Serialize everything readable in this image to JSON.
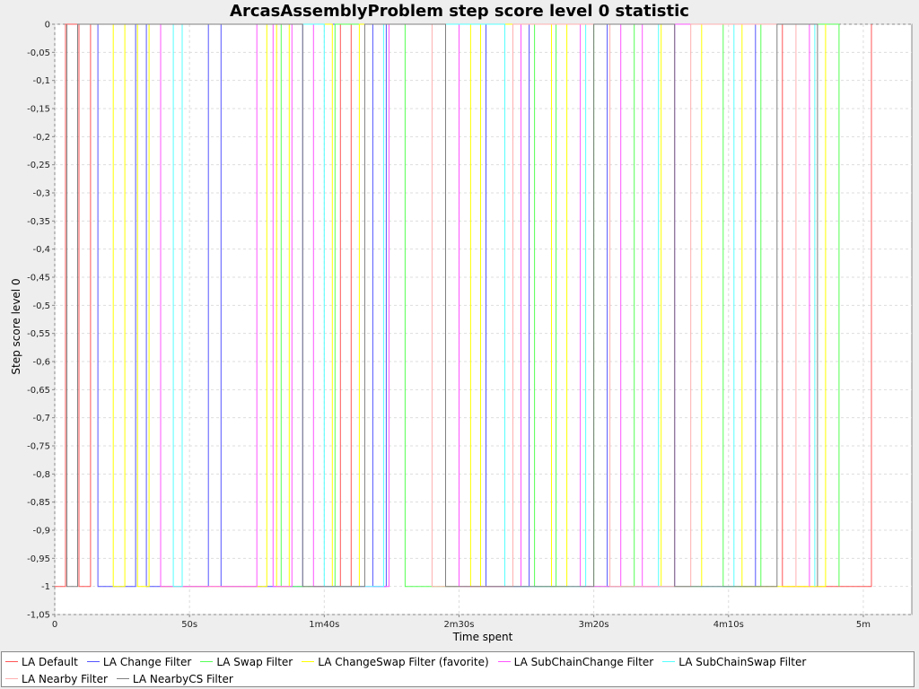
{
  "chart_data": {
    "type": "line",
    "title": "ArcasAssemblyProblem step score level 0 statistic",
    "xlabel": "Time spent",
    "ylabel": "Step score level 0",
    "xlim": [
      0,
      318
    ],
    "ylim": [
      -1.05,
      0
    ],
    "x_ticks": [
      {
        "value": 0,
        "label": "0"
      },
      {
        "value": 50,
        "label": "50s"
      },
      {
        "value": 100,
        "label": "1m40s"
      },
      {
        "value": 150,
        "label": "2m30s"
      },
      {
        "value": 200,
        "label": "3m20s"
      },
      {
        "value": 250,
        "label": "4m10s"
      },
      {
        "value": 300,
        "label": "5m"
      }
    ],
    "y_ticks": [
      {
        "value": 0,
        "label": "0"
      },
      {
        "value": -0.05,
        "label": "-0,05"
      },
      {
        "value": -0.1,
        "label": "-0,1"
      },
      {
        "value": -0.15,
        "label": "-0,15"
      },
      {
        "value": -0.2,
        "label": "-0,2"
      },
      {
        "value": -0.25,
        "label": "-0,25"
      },
      {
        "value": -0.3,
        "label": "-0,3"
      },
      {
        "value": -0.35,
        "label": "-0,35"
      },
      {
        "value": -0.4,
        "label": "-0,4"
      },
      {
        "value": -0.45,
        "label": "-0,45"
      },
      {
        "value": -0.5,
        "label": "-0,5"
      },
      {
        "value": -0.55,
        "label": "-0,55"
      },
      {
        "value": -0.6,
        "label": "-0,6"
      },
      {
        "value": -0.65,
        "label": "-0,65"
      },
      {
        "value": -0.7,
        "label": "-0,7"
      },
      {
        "value": -0.75,
        "label": "-0,75"
      },
      {
        "value": -0.8,
        "label": "-0,8"
      },
      {
        "value": -0.85,
        "label": "-0,85"
      },
      {
        "value": -0.9,
        "label": "-0,9"
      },
      {
        "value": -0.95,
        "label": "-0,95"
      },
      {
        "value": -1,
        "label": "-1"
      },
      {
        "value": -1.05,
        "label": "-1,05"
      }
    ],
    "grid": true,
    "legend_position": "bottom",
    "series": [
      {
        "name": "LA Default",
        "color": "#ff5555",
        "x": [
          0,
          4,
          4,
          9,
          9,
          13.3,
          13.3,
          106,
          106,
          110,
          110,
          270,
          270,
          303,
          303
        ],
        "y": [
          -1,
          -1,
          0,
          0,
          -1,
          -1,
          0,
          0,
          -1,
          -1,
          0,
          0,
          -1,
          -1,
          0
        ]
      },
      {
        "name": "LA Change Filter",
        "color": "#5555ff",
        "x": [
          16,
          16,
          30,
          30,
          34,
          34,
          57,
          57,
          61.7,
          61.7,
          92,
          92,
          118,
          118,
          123,
          123,
          160,
          160,
          176,
          176,
          205,
          205,
          230,
          230,
          260,
          260
        ],
        "y": [
          0,
          -1,
          -1,
          0,
          0,
          -1,
          -1,
          0,
          0,
          -1,
          -1,
          0,
          0,
          -1,
          -1,
          0,
          0,
          -1,
          -1,
          0,
          0,
          -1,
          -1,
          0,
          0,
          -1
        ]
      },
      {
        "name": "LA Swap Filter",
        "color": "#55ff55",
        "x": [
          84,
          84,
          104,
          104,
          130,
          130,
          150,
          150,
          178,
          178,
          186,
          186,
          200,
          200,
          215,
          215,
          248,
          248,
          262,
          262,
          291,
          291
        ],
        "y": [
          0,
          -1,
          -1,
          0,
          0,
          -1,
          -1,
          0,
          0,
          -1,
          -1,
          0,
          0,
          -1,
          -1,
          0,
          0,
          -1,
          -1,
          0,
          0,
          -1
        ]
      },
      {
        "name": "LA ChangeSwap Filter (favorite)",
        "color": "#ffff00",
        "x": [
          21.7,
          21.7,
          26,
          26,
          30.7,
          30.7,
          35,
          35,
          39.3,
          39.3,
          78.7,
          78.7,
          82.3,
          82.3,
          87,
          87,
          103,
          103,
          113,
          113,
          154.3,
          154.3,
          158,
          158,
          184.3,
          184.3,
          190,
          190,
          225,
          225,
          240,
          240,
          255,
          255,
          286,
          286
        ],
        "y": [
          0,
          -1,
          -1,
          0,
          0,
          -1,
          -1,
          0,
          0,
          -1,
          -1,
          0,
          0,
          -1,
          -1,
          0,
          0,
          -1,
          -1,
          0,
          0,
          -1,
          -1,
          0,
          0,
          -1,
          -1,
          0,
          0,
          -1,
          -1,
          0,
          0,
          -1,
          -1,
          0
        ]
      },
      {
        "name": "LA SubChainChange Filter",
        "color": "#ff55ff",
        "x": [
          39.3,
          39.3,
          75,
          75,
          81,
          81,
          88,
          88,
          96,
          96,
          124,
          124,
          150,
          150,
          173,
          173,
          195,
          195,
          210,
          210,
          218,
          218,
          230,
          230,
          280,
          280
        ],
        "y": [
          0,
          -1,
          -1,
          0,
          0,
          -1,
          -1,
          0,
          0,
          -1,
          -1,
          0,
          0,
          -1,
          -1,
          0,
          0,
          -1,
          -1,
          0,
          0,
          -1,
          -1,
          0,
          0,
          -1
        ]
      },
      {
        "name": "LA SubChainSwap Filter",
        "color": "#55ffff",
        "x": [
          44,
          44,
          47.3,
          47.3,
          100,
          100,
          122,
          122,
          167,
          167,
          197,
          197,
          224,
          224,
          252,
          252,
          282,
          282
        ],
        "y": [
          0,
          -1,
          -1,
          0,
          0,
          -1,
          -1,
          0,
          0,
          -1,
          -1,
          0,
          0,
          -1,
          -1,
          0,
          0,
          -1
        ]
      },
      {
        "name": "LA Nearby Filter",
        "color": "#ffafaf",
        "x": [
          140,
          140,
          170,
          170,
          206,
          206,
          236,
          236,
          275,
          275
        ],
        "y": [
          0,
          -1,
          -1,
          0,
          0,
          -1,
          -1,
          0,
          0,
          -1
        ]
      },
      {
        "name": "LA NearbyCS Filter",
        "color": "#808080",
        "x": [
          4.5,
          4.5,
          8.5,
          8.5,
          92,
          92,
          115,
          115,
          145,
          145,
          200,
          200,
          230,
          230,
          268,
          268,
          283,
          283
        ],
        "y": [
          0,
          -1,
          -1,
          0,
          0,
          -1,
          -1,
          0,
          0,
          -1,
          -1,
          0,
          0,
          -1,
          -1,
          0,
          0,
          -1
        ]
      }
    ]
  }
}
